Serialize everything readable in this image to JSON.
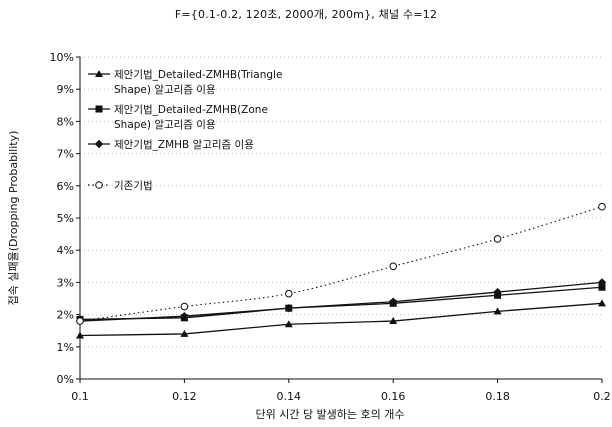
{
  "chart_data": {
    "type": "line",
    "title": "F={0.1-0.2, 120초, 2000개, 200m}, 채널 수=12",
    "xlabel": "단위 시간 당 발생하는 호의 개수",
    "ylabel": "접속 실패율(Dropping Probability)",
    "x": [
      0.1,
      0.12,
      0.14,
      0.16,
      0.18,
      0.2
    ],
    "x_tick_labels": [
      "0.1",
      "0.12",
      "0.14",
      "0.16",
      "0.18",
      "0.2"
    ],
    "xlim": [
      0.1,
      0.2
    ],
    "ylim": [
      0,
      10
    ],
    "y_ticks": [
      0,
      1,
      2,
      3,
      4,
      5,
      6,
      7,
      8,
      9,
      10
    ],
    "y_tick_labels": [
      "0%",
      "1%",
      "2%",
      "3%",
      "4%",
      "5%",
      "6%",
      "7%",
      "8%",
      "9%",
      "10%"
    ],
    "grid": "horizontal dotted",
    "legend_position": "top-left",
    "series": [
      {
        "name_lines": [
          "제안기법_Detailed-ZMHB(Triangle",
          "Shape) 알고리즘 이용"
        ],
        "marker": "triangle",
        "line_style": "solid",
        "values": [
          1.35,
          1.4,
          1.7,
          1.8,
          2.1,
          2.35
        ]
      },
      {
        "name_lines": [
          "제안기법_Detailed-ZMHB(Zone",
          "Shape) 알고리즘 이용"
        ],
        "marker": "square",
        "line_style": "solid",
        "values": [
          1.85,
          1.9,
          2.2,
          2.35,
          2.6,
          2.85
        ]
      },
      {
        "name_lines": [
          "제안기법_ZMHB  알고리즘 이용"
        ],
        "marker": "diamond",
        "line_style": "solid",
        "values": [
          1.8,
          1.95,
          2.2,
          2.4,
          2.7,
          3.0
        ]
      },
      {
        "name_lines": [
          "기존기법"
        ],
        "marker": "circle-open",
        "line_style": "dotted",
        "values": [
          1.8,
          2.25,
          2.65,
          3.5,
          4.35,
          5.35
        ]
      }
    ]
  },
  "colors": {
    "line": "#111111",
    "grid": "#bdbdbd",
    "background": "#ffffff"
  }
}
